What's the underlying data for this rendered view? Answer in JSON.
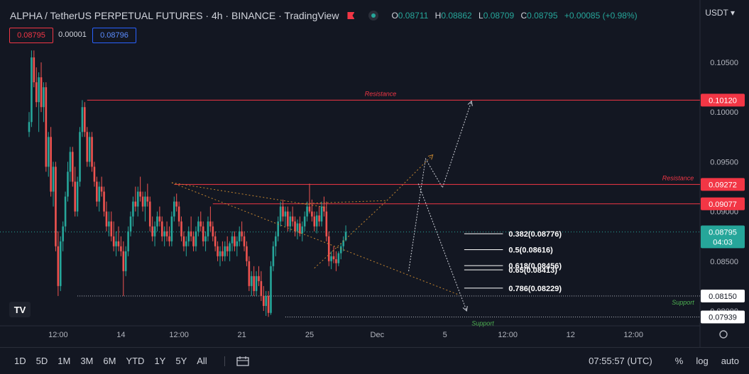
{
  "header": {
    "title": "ALPHA / TetherUS PERPETUAL FUTURES · 4h · BINANCE · TradingView",
    "ohlc": [
      {
        "k": "O",
        "v": "0.08711"
      },
      {
        "k": "H",
        "v": "0.08862"
      },
      {
        "k": "L",
        "v": "0.08709"
      },
      {
        "k": "C",
        "v": "0.08795"
      }
    ],
    "change": "+0.00085 (+0.98%)",
    "bid": "0.08795",
    "spread": "0.00001",
    "ask": "0.08796",
    "currency": "USDT"
  },
  "colors": {
    "up": "#26a69a",
    "down": "#ef5350",
    "fib": "#ffffff",
    "trend": "#c4852f",
    "resistance": "#f23645",
    "support": "#4caf50",
    "arrow": "#d1d4dc",
    "background": "#131722"
  },
  "bottom": {
    "ranges": [
      "1D",
      "5D",
      "1M",
      "3M",
      "6M",
      "YTD",
      "1Y",
      "5Y",
      "All"
    ],
    "time": "07:55:57 (UTC)",
    "percent": "%",
    "log": "log",
    "auto": "auto"
  },
  "chart_data": {
    "type": "candlestick",
    "interval": "4h",
    "y_axis": {
      "ylim": [
        0.0785,
        0.107
      ],
      "ticks": [
        "0.10500",
        "0.10000",
        "0.09500",
        "0.09000",
        "0.08500",
        "0.08000"
      ],
      "tick_values": [
        0.105,
        0.1,
        0.095,
        0.09,
        0.085,
        0.08
      ]
    },
    "x_axis": {
      "labels": [
        "12:00",
        "14",
        "12:00",
        "21",
        "25",
        "Dec",
        "5",
        "12:00",
        "12",
        "12:00"
      ],
      "label_bar_index": [
        12,
        38,
        62,
        88,
        116,
        144,
        172,
        198,
        224,
        250
      ]
    },
    "last_price": {
      "value": 0.08795,
      "label": "0.08795",
      "countdown": "04:03"
    },
    "horizontal_levels": [
      {
        "name": "Resistance",
        "value": 0.1012,
        "label": "0.10120",
        "start_bar": 24
      },
      {
        "name": "Resistance",
        "value": 0.09272,
        "label": "0.09272",
        "start_bar": 60
      },
      {
        "name": "",
        "value": 0.09077,
        "label": "0.09077",
        "start_bar": 76
      }
    ],
    "support_levels": [
      {
        "name": "Support",
        "value": 0.0815,
        "label": "0.08150",
        "start_bar": 20
      },
      {
        "name": "Support",
        "value": 0.07939,
        "label": "0.07939",
        "start_bar": 106
      }
    ],
    "fib_levels": [
      {
        "label": "0.382(0.08776)",
        "value": 0.08776
      },
      {
        "label": "0.5(0.08616)",
        "value": 0.08616
      },
      {
        "label": "0.618(0.08456)",
        "value": 0.08456
      },
      {
        "label": "0.65(0.08413)",
        "value": 0.08413
      },
      {
        "label": "0.786(0.08229)",
        "value": 0.08229
      }
    ],
    "fib_bar_range": [
      180,
      196
    ],
    "trendlines": [
      {
        "from": [
          59,
          0.0929
        ],
        "to": [
          178,
          0.0816
        ],
        "style": "dotted"
      },
      {
        "from": [
          59,
          0.0929
        ],
        "to": [
          123,
          0.0904
        ],
        "style": "dotted"
      },
      {
        "from": [
          113,
          0.0908
        ],
        "to": [
          148,
          0.0911
        ],
        "style": "dotted"
      },
      {
        "from": [
          118,
          0.0843
        ],
        "to": [
          148,
          0.0911
        ],
        "style": "dotted"
      },
      {
        "from": [
          148,
          0.0911
        ],
        "to": [
          167,
          0.0957
        ],
        "style": "dotted",
        "arrow": true
      }
    ],
    "projection_arrows": [
      {
        "points": [
          [
            157,
            0.084
          ],
          [
            164,
            0.0953
          ],
          [
            171,
            0.0924
          ],
          [
            183,
            0.1011
          ]
        ]
      },
      {
        "points": [
          [
            161,
            0.0928
          ],
          [
            181,
            0.08
          ]
        ]
      }
    ],
    "candles": [
      [
        0.098,
        0.1,
        0.0975,
        0.099
      ],
      [
        0.099,
        0.1062,
        0.0985,
        0.1055
      ],
      [
        0.1055,
        0.1062,
        0.1025,
        0.103
      ],
      [
        0.103,
        0.1045,
        0.1005,
        0.101
      ],
      [
        0.101,
        0.104,
        0.098,
        0.1035
      ],
      [
        0.1035,
        0.105,
        0.1,
        0.1005
      ],
      [
        0.1005,
        0.103,
        0.099,
        0.1025
      ],
      [
        0.1025,
        0.103,
        0.094,
        0.0945
      ],
      [
        0.0945,
        0.098,
        0.0935,
        0.0975
      ],
      [
        0.0975,
        0.0985,
        0.0915,
        0.092
      ],
      [
        0.092,
        0.095,
        0.0905,
        0.0945
      ],
      [
        0.0945,
        0.095,
        0.086,
        0.0865
      ],
      [
        0.0865,
        0.088,
        0.0815,
        0.0825
      ],
      [
        0.0825,
        0.0875,
        0.082,
        0.087
      ],
      [
        0.087,
        0.089,
        0.086,
        0.0885
      ],
      [
        0.0885,
        0.092,
        0.088,
        0.0915
      ],
      [
        0.0915,
        0.095,
        0.091,
        0.094
      ],
      [
        0.094,
        0.0965,
        0.093,
        0.096
      ],
      [
        0.096,
        0.0965,
        0.0925,
        0.093
      ],
      [
        0.093,
        0.0945,
        0.0895,
        0.09
      ],
      [
        0.09,
        0.0935,
        0.0895,
        0.093
      ],
      [
        0.093,
        0.0985,
        0.0925,
        0.098
      ],
      [
        0.098,
        0.1012,
        0.0975,
        0.1005
      ],
      [
        0.1005,
        0.101,
        0.0975,
        0.098
      ],
      [
        0.098,
        0.0985,
        0.0945,
        0.095
      ],
      [
        0.095,
        0.098,
        0.0945,
        0.0975
      ],
      [
        0.0975,
        0.098,
        0.094,
        0.0945
      ],
      [
        0.0945,
        0.095,
        0.0925,
        0.093
      ],
      [
        0.093,
        0.0935,
        0.0905,
        0.091
      ],
      [
        0.091,
        0.093,
        0.09,
        0.0925
      ],
      [
        0.0925,
        0.0935,
        0.0915,
        0.092
      ],
      [
        0.092,
        0.0925,
        0.0895,
        0.09
      ],
      [
        0.09,
        0.091,
        0.088,
        0.0885
      ],
      [
        0.0885,
        0.09,
        0.0875,
        0.089
      ],
      [
        0.089,
        0.09,
        0.087,
        0.0875
      ],
      [
        0.0875,
        0.089,
        0.086,
        0.0865
      ],
      [
        0.0865,
        0.088,
        0.0855,
        0.087
      ],
      [
        0.087,
        0.0885,
        0.086,
        0.0865
      ],
      [
        0.0865,
        0.0875,
        0.0855,
        0.086
      ],
      [
        0.086,
        0.087,
        0.0815,
        0.084
      ],
      [
        0.084,
        0.0865,
        0.0835,
        0.086
      ],
      [
        0.086,
        0.0885,
        0.0855,
        0.088
      ],
      [
        0.088,
        0.09,
        0.0875,
        0.0895
      ],
      [
        0.0895,
        0.0915,
        0.0885,
        0.091
      ],
      [
        0.091,
        0.0925,
        0.09,
        0.0905
      ],
      [
        0.0905,
        0.0925,
        0.0895,
        0.092
      ],
      [
        0.092,
        0.0935,
        0.091,
        0.0915
      ],
      [
        0.0915,
        0.092,
        0.09,
        0.0905
      ],
      [
        0.0905,
        0.092,
        0.089,
        0.0915
      ],
      [
        0.0915,
        0.0928,
        0.0905,
        0.091
      ],
      [
        0.091,
        0.0915,
        0.088,
        0.0885
      ],
      [
        0.0885,
        0.0895,
        0.087,
        0.0875
      ],
      [
        0.0875,
        0.089,
        0.0865,
        0.0885
      ],
      [
        0.0885,
        0.09,
        0.088,
        0.0895
      ],
      [
        0.0895,
        0.0905,
        0.0885,
        0.089
      ],
      [
        0.089,
        0.0895,
        0.087,
        0.0875
      ],
      [
        0.0875,
        0.0885,
        0.0865,
        0.088
      ],
      [
        0.088,
        0.089,
        0.087,
        0.0875
      ],
      [
        0.0875,
        0.0885,
        0.0865,
        0.087
      ],
      [
        0.087,
        0.09,
        0.0865,
        0.0895
      ],
      [
        0.0895,
        0.0915,
        0.089,
        0.091
      ],
      [
        0.091,
        0.0918,
        0.09,
        0.0905
      ],
      [
        0.0905,
        0.091,
        0.0885,
        0.089
      ],
      [
        0.089,
        0.0895,
        0.087,
        0.0875
      ],
      [
        0.0875,
        0.088,
        0.086,
        0.0865
      ],
      [
        0.0865,
        0.0875,
        0.0855,
        0.087
      ],
      [
        0.087,
        0.0885,
        0.0865,
        0.088
      ],
      [
        0.088,
        0.0895,
        0.087,
        0.0875
      ],
      [
        0.0875,
        0.088,
        0.086,
        0.0865
      ],
      [
        0.0865,
        0.0885,
        0.086,
        0.088
      ],
      [
        0.088,
        0.0895,
        0.0875,
        0.089
      ],
      [
        0.089,
        0.09,
        0.088,
        0.0885
      ],
      [
        0.0885,
        0.089,
        0.0865,
        0.087
      ],
      [
        0.087,
        0.088,
        0.086,
        0.0875
      ],
      [
        0.0875,
        0.0895,
        0.087,
        0.089
      ],
      [
        0.089,
        0.0905,
        0.088,
        0.0885
      ],
      [
        0.0885,
        0.089,
        0.087,
        0.0875
      ],
      [
        0.0875,
        0.088,
        0.086,
        0.0865
      ],
      [
        0.0865,
        0.087,
        0.085,
        0.0855
      ],
      [
        0.0855,
        0.0865,
        0.0845,
        0.086
      ],
      [
        0.086,
        0.087,
        0.085,
        0.0855
      ],
      [
        0.0855,
        0.087,
        0.085,
        0.0865
      ],
      [
        0.0865,
        0.0875,
        0.0855,
        0.086
      ],
      [
        0.086,
        0.087,
        0.085,
        0.0868
      ],
      [
        0.0868,
        0.088,
        0.086,
        0.0875
      ],
      [
        0.0875,
        0.088,
        0.086,
        0.0865
      ],
      [
        0.0865,
        0.0875,
        0.0855,
        0.087
      ],
      [
        0.087,
        0.0885,
        0.0865,
        0.088
      ],
      [
        0.088,
        0.089,
        0.087,
        0.0875
      ],
      [
        0.0875,
        0.088,
        0.086,
        0.0865
      ],
      [
        0.0865,
        0.087,
        0.0845,
        0.085
      ],
      [
        0.085,
        0.0855,
        0.082,
        0.0825
      ],
      [
        0.0825,
        0.084,
        0.0815,
        0.0835
      ],
      [
        0.0835,
        0.0845,
        0.0815,
        0.082
      ],
      [
        0.082,
        0.084,
        0.0815,
        0.0835
      ],
      [
        0.0835,
        0.0845,
        0.0825,
        0.083
      ],
      [
        0.083,
        0.084,
        0.081,
        0.0815
      ],
      [
        0.0815,
        0.0825,
        0.08,
        0.0805
      ],
      [
        0.0805,
        0.082,
        0.0795,
        0.0815
      ],
      [
        0.0815,
        0.082,
        0.0794,
        0.0798
      ],
      [
        0.0798,
        0.085,
        0.0796,
        0.0845
      ],
      [
        0.0845,
        0.087,
        0.084,
        0.0865
      ],
      [
        0.0865,
        0.088,
        0.0855,
        0.0875
      ],
      [
        0.0875,
        0.0895,
        0.087,
        0.089
      ],
      [
        0.089,
        0.091,
        0.0885,
        0.0905
      ],
      [
        0.0905,
        0.0912,
        0.089,
        0.0895
      ],
      [
        0.0895,
        0.0905,
        0.0885,
        0.09
      ],
      [
        0.09,
        0.0905,
        0.088,
        0.0885
      ],
      [
        0.0885,
        0.09,
        0.088,
        0.0895
      ],
      [
        0.0895,
        0.0905,
        0.0885,
        0.089
      ],
      [
        0.089,
        0.0895,
        0.0875,
        0.088
      ],
      [
        0.088,
        0.0892,
        0.0872,
        0.0888
      ],
      [
        0.0888,
        0.0895,
        0.0875,
        0.0878
      ],
      [
        0.0878,
        0.089,
        0.087,
        0.0885
      ],
      [
        0.0885,
        0.09,
        0.088,
        0.0895
      ],
      [
        0.0895,
        0.091,
        0.089,
        0.0905
      ],
      [
        0.0905,
        0.0928,
        0.0898,
        0.09
      ],
      [
        0.09,
        0.0912,
        0.089,
        0.0895
      ],
      [
        0.0895,
        0.09,
        0.088,
        0.0885
      ],
      [
        0.0885,
        0.09,
        0.0878,
        0.0896
      ],
      [
        0.0896,
        0.0905,
        0.0885,
        0.089
      ],
      [
        0.089,
        0.091,
        0.0885,
        0.0905
      ],
      [
        0.0905,
        0.0915,
        0.0895,
        0.09
      ],
      [
        0.09,
        0.091,
        0.087,
        0.0875
      ],
      [
        0.0875,
        0.088,
        0.0845,
        0.085
      ],
      [
        0.085,
        0.086,
        0.0842,
        0.0855
      ],
      [
        0.0855,
        0.0865,
        0.0848,
        0.0852
      ],
      [
        0.0852,
        0.086,
        0.084,
        0.0848
      ],
      [
        0.0848,
        0.086,
        0.0845,
        0.0858
      ],
      [
        0.0858,
        0.0868,
        0.0852,
        0.0865
      ],
      [
        0.0865,
        0.0875,
        0.086,
        0.0871
      ],
      [
        0.0871,
        0.0886,
        0.087,
        0.08795
      ]
    ]
  }
}
